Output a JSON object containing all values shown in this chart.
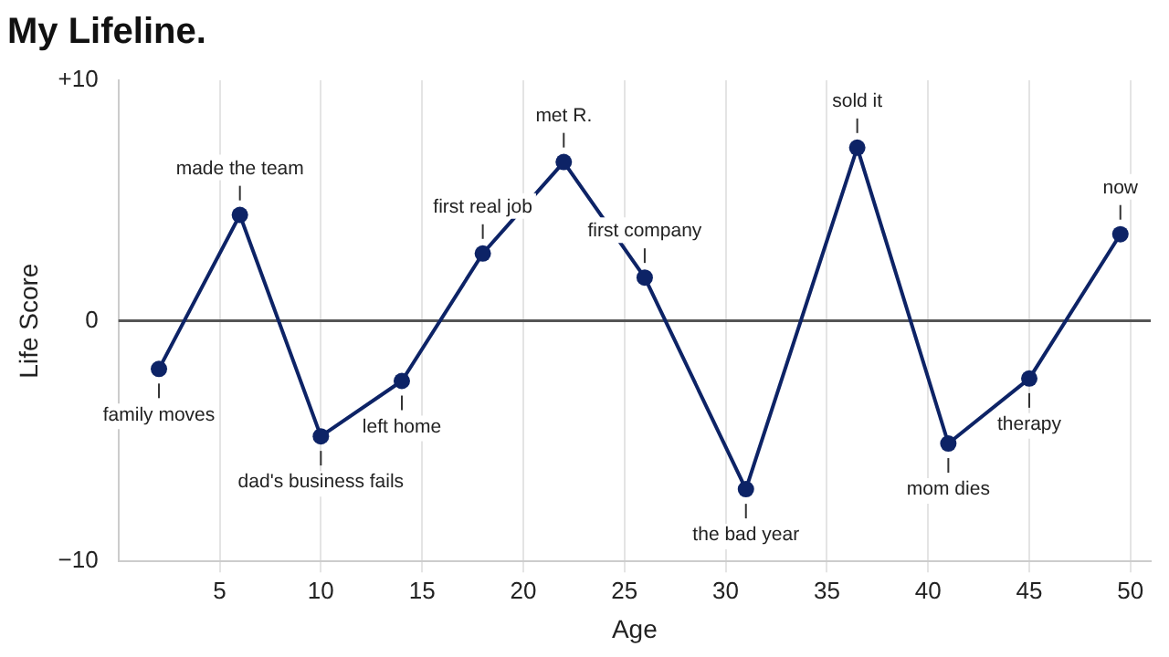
{
  "chart_data": {
    "type": "line",
    "title": "My Lifeline.",
    "xlabel": "Age",
    "ylabel": "Life Score",
    "x": [
      2,
      6,
      10,
      14,
      18,
      22,
      26,
      31,
      36.5,
      41,
      45,
      49.5
    ],
    "series": [
      {
        "color": "#0d2366",
        "values": [
          -2.0,
          4.4,
          -4.8,
          -2.5,
          2.8,
          6.6,
          1.8,
          -7.0,
          7.2,
          -5.1,
          -2.4,
          3.6
        ]
      }
    ],
    "xlim": [
      0,
      51
    ],
    "xticks": [
      5,
      10,
      15,
      20,
      25,
      30,
      35,
      40,
      45,
      50
    ],
    "ylim": [
      -10,
      10
    ],
    "yticks": [
      {
        "value": 10,
        "label": "+10"
      },
      0,
      {
        "value": -10,
        "label": "−10"
      }
    ],
    "grid": "x",
    "marker": "circle",
    "line_style": "solid",
    "legend": false,
    "ref_lines": [
      {
        "axis": "y",
        "value": 0,
        "color": "#555555"
      }
    ],
    "annotations": [
      {
        "text": "family moves",
        "x": 2,
        "y": -2.0
      },
      {
        "text": "made the team",
        "x": 6,
        "y": 4.4
      },
      {
        "text": "dad's business fails",
        "x": 10,
        "y": -4.8
      },
      {
        "text": "left home",
        "x": 14,
        "y": -2.5
      },
      {
        "text": "first real job",
        "x": 18,
        "y": 2.8
      },
      {
        "text": "met R.",
        "x": 22,
        "y": 6.6
      },
      {
        "text": "first company",
        "x": 26,
        "y": 1.8
      },
      {
        "text": "the bad year",
        "x": 31,
        "y": -7.0
      },
      {
        "text": "sold it",
        "x": 36.5,
        "y": 7.2
      },
      {
        "text": "mom dies",
        "x": 41,
        "y": -5.1
      },
      {
        "text": "therapy",
        "x": 45,
        "y": -2.4
      },
      {
        "text": "now",
        "x": 49.5,
        "y": 3.6
      }
    ]
  }
}
